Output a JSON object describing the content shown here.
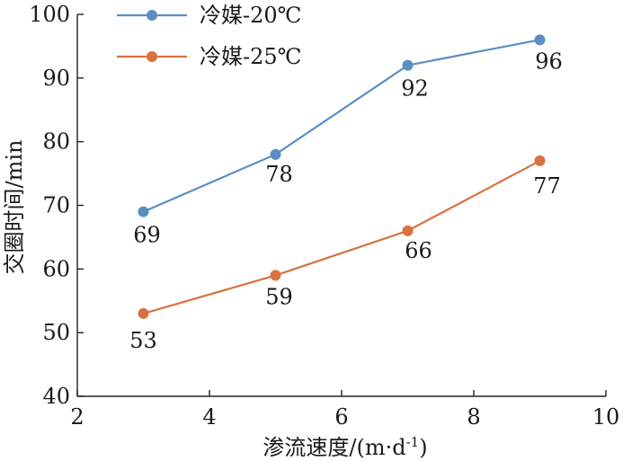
{
  "chart_data": {
    "type": "line",
    "title": "",
    "xlabel": "渗流速度/(m·d",
    "xlabel_superscript": "-1",
    "xlabel_suffix": ")",
    "ylabel": "交圈时间/min",
    "xlim": [
      2,
      10
    ],
    "ylim": [
      40,
      100
    ],
    "xticks": [
      2,
      4,
      6,
      8,
      10
    ],
    "yticks": [
      40,
      50,
      60,
      70,
      80,
      90,
      100
    ],
    "grid": false,
    "legend_position": "top-left",
    "x": [
      3,
      5,
      7,
      9
    ],
    "series": [
      {
        "name": "冷媒-20℃",
        "color": "#5b8ec4",
        "values": [
          69,
          78,
          92,
          96
        ]
      },
      {
        "name": "冷媒-25℃",
        "color": "#d87240",
        "values": [
          53,
          59,
          66,
          77
        ]
      }
    ]
  }
}
